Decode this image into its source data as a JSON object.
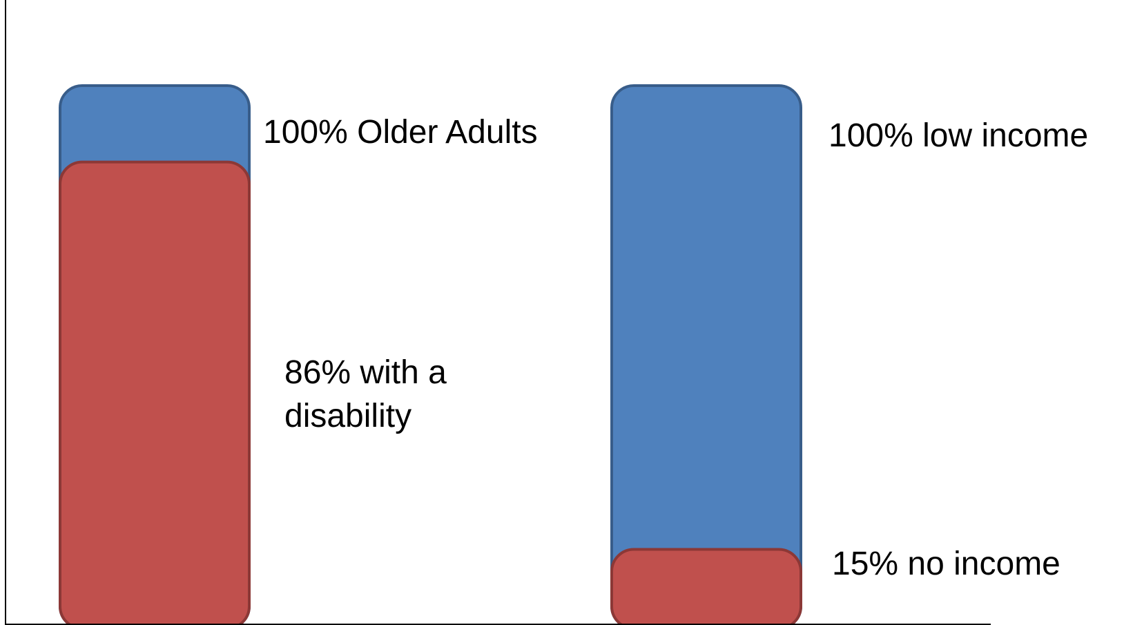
{
  "chart_data": {
    "type": "bar",
    "title": "",
    "xlabel": "",
    "ylabel": "",
    "ylim": [
      0,
      100
    ],
    "grid": false,
    "legend": "none",
    "groups": [
      {
        "bars": [
          {
            "value": 100,
            "label": "100% Older Adults",
            "color": "#4F81BD",
            "stroke": "#385D8A"
          },
          {
            "value": 86,
            "label": "86% with a disability",
            "label_lines": [
              "86% with a",
              "disability"
            ],
            "color": "#C0504D",
            "stroke": "#8C3836"
          }
        ]
      },
      {
        "bars": [
          {
            "value": 100,
            "label": "100% low income",
            "color": "#4F81BD",
            "stroke": "#385D8A"
          },
          {
            "value": 15,
            "label": "15% no income",
            "color": "#C0504D",
            "stroke": "#8C3836"
          }
        ]
      }
    ]
  }
}
